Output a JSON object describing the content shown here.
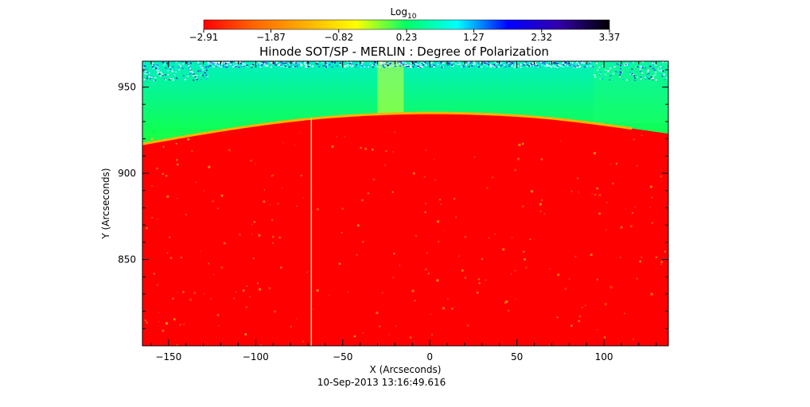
{
  "chart_data": {
    "type": "heatmap",
    "title": "Hinode SOT/SP - MERLIN : Degree of Polarization",
    "subtitle": "10-Sep-2013 13:16:49.616",
    "xlabel": "X (Arcseconds)",
    "ylabel": "Y (Arcseconds)",
    "xlim": [
      -165,
      137
    ],
    "ylim": [
      800,
      965
    ],
    "x_ticks": [
      -150,
      -100,
      -50,
      0,
      50,
      100
    ],
    "x_tick_labels": [
      "−150",
      "−100",
      "−50",
      "0",
      "50",
      "100"
    ],
    "y_ticks": [
      850,
      900,
      950
    ],
    "y_tick_labels": [
      "850",
      "900",
      "950"
    ],
    "colorbar": {
      "label_base": "Log",
      "label_sub": "10",
      "range": [
        -2.91,
        3.37
      ],
      "ticks": [
        -2.91,
        -1.87,
        -0.82,
        0.23,
        1.27,
        2.32,
        3.37
      ],
      "tick_labels": [
        "−2.91",
        "−1.87",
        "−0.82",
        "0.23",
        "1.27",
        "2.32",
        "3.37"
      ],
      "colors": [
        "#ff0000",
        "#ff6600",
        "#ffb000",
        "#ffff00",
        "#00ff66",
        "#00ffff",
        "#0000ff",
        "#3300aa",
        "#000000"
      ]
    },
    "limb_y": [
      {
        "x": -165,
        "y": 917
      },
      {
        "x": -120,
        "y": 925
      },
      {
        "x": -70,
        "y": 932
      },
      {
        "x": -20,
        "y": 935
      },
      {
        "x": 20,
        "y": 935
      },
      {
        "x": 60,
        "y": 933
      },
      {
        "x": 95,
        "y": 929
      },
      {
        "x": 137,
        "y": 923
      }
    ],
    "grid": false
  }
}
